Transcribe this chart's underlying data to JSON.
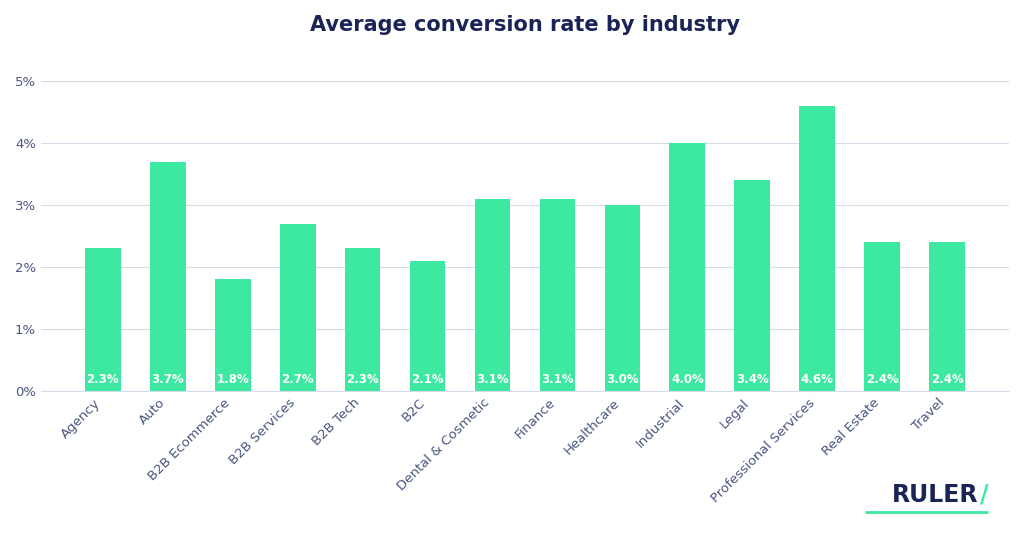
{
  "title": "Average conversion rate by industry",
  "categories": [
    "Agency",
    "Auto",
    "B2B Ecommerce",
    "B2B Services",
    "B2B Tech",
    "B2C",
    "Dental & Cosmetic",
    "Finance",
    "Healthcare",
    "Industrial",
    "Legal",
    "Professional Services",
    "Real Estate",
    "Travel"
  ],
  "values": [
    2.3,
    3.7,
    1.8,
    2.7,
    2.3,
    2.1,
    3.1,
    3.1,
    3.0,
    4.0,
    3.4,
    4.6,
    2.4,
    2.4
  ],
  "bar_color": "#3de8a0",
  "label_color": "#ffffff",
  "title_color": "#1a2456",
  "grid_color": "#d8dce8",
  "tick_color": "#4a5580",
  "background_color": "#ffffff",
  "ylim": [
    0,
    5.5
  ],
  "yticks": [
    0,
    1,
    2,
    3,
    4,
    5
  ],
  "ytick_labels": [
    "0%",
    "1%",
    "2%",
    "3%",
    "4%",
    "5%"
  ],
  "bar_width": 0.55,
  "ruler_text_color": "#1a2456",
  "ruler_slash_color": "#3de8a0",
  "title_fontsize": 15,
  "label_fontsize": 8.5,
  "tick_fontsize": 9.5
}
